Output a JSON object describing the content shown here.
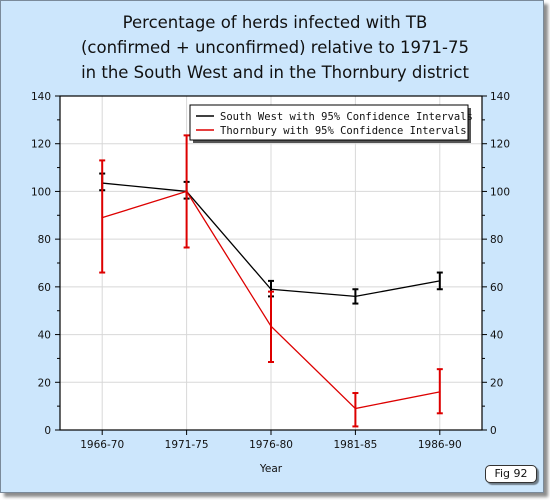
{
  "chart_data": {
    "type": "line",
    "title_lines": [
      "Percentage of herds infected with TB",
      "(confirmed + unconfirmed) relative to 1971-75",
      "in the South West and in the Thornbury district"
    ],
    "xlabel": "Year",
    "ylabel": "",
    "categories": [
      "1966-70",
      "1971-75",
      "1976-80",
      "1981-85",
      "1986-90"
    ],
    "ylim": [
      0,
      140
    ],
    "yticks": [
      0,
      20,
      40,
      60,
      80,
      100,
      120,
      140
    ],
    "grid": true,
    "legend_position": "top-right",
    "series": [
      {
        "name": "South West with 95% Confidence Intervals",
        "color": "#000000",
        "values": [
          103.5,
          100,
          59,
          56,
          62.5
        ],
        "ci_low": [
          100.5,
          97,
          56,
          53,
          59
        ],
        "ci_high": [
          107.5,
          104,
          62.5,
          59,
          66
        ]
      },
      {
        "name": "Thornbury with 95% Confidence Intervals",
        "color": "#dd0000",
        "values": [
          89,
          100,
          43.5,
          9,
          16
        ],
        "ci_low": [
          66,
          76.5,
          28.5,
          1.5,
          7
        ],
        "ci_high": [
          113,
          123.5,
          58,
          15.5,
          25.5
        ]
      }
    ]
  },
  "figure_label": "Fig 92"
}
